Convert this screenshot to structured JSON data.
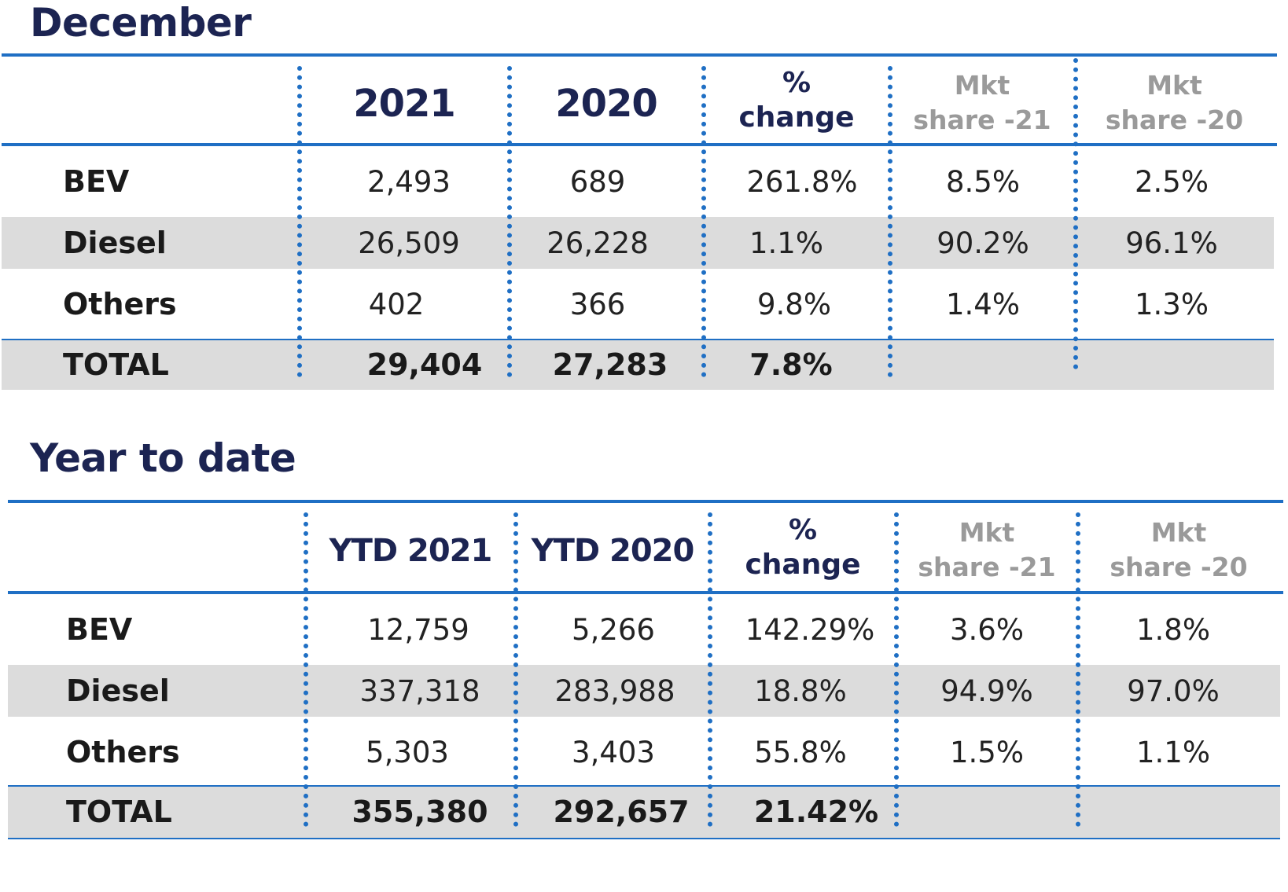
{
  "sections": [
    {
      "title": "December",
      "headers": [
        "2021",
        "2020",
        "% change",
        "Mkt share -21",
        "Mkt share -20"
      ],
      "rows": [
        {
          "label": "BEV",
          "values": [
            "2,493",
            "689",
            "261.8%",
            "8.5%",
            "2.5%"
          ]
        },
        {
          "label": "Diesel",
          "values": [
            "26,509",
            "26,228",
            "1.1%",
            "90.2%",
            "96.1%"
          ]
        },
        {
          "label": "Others",
          "values": [
            "402",
            "366",
            "9.8%",
            "1.4%",
            "1.3%"
          ]
        }
      ],
      "total": {
        "label": "TOTAL",
        "values": [
          "29,404",
          "27,283",
          "7.8%",
          "",
          ""
        ]
      }
    },
    {
      "title": "Year to date",
      "headers": [
        "YTD 2021",
        "YTD 2020",
        "% change",
        "Mkt share -21",
        "Mkt share -20"
      ],
      "rows": [
        {
          "label": "BEV",
          "values": [
            "12,759",
            "5,266",
            "142.29%",
            "3.6%",
            "1.8%"
          ]
        },
        {
          "label": "Diesel",
          "values": [
            "337,318",
            "283,988",
            "18.8%",
            "94.9%",
            "97.0%"
          ]
        },
        {
          "label": "Others",
          "values": [
            "5,303",
            "3,403",
            "55.8%",
            "1.5%",
            "1.1%"
          ]
        }
      ],
      "total": {
        "label": "TOTAL",
        "values": [
          "355,380",
          "292,657",
          "21.42%",
          "",
          ""
        ]
      }
    }
  ],
  "header_parts": {
    "change_line1": "%",
    "change_line2": "change",
    "mkt_line1": "Mkt",
    "mkt21_line2": "share -21",
    "mkt20_line2": "share -20"
  },
  "colors": {
    "title": "#1c2452",
    "rule": "#1f6fc4",
    "band": "#dcdcdc",
    "muted_header": "#9a9a9a"
  }
}
